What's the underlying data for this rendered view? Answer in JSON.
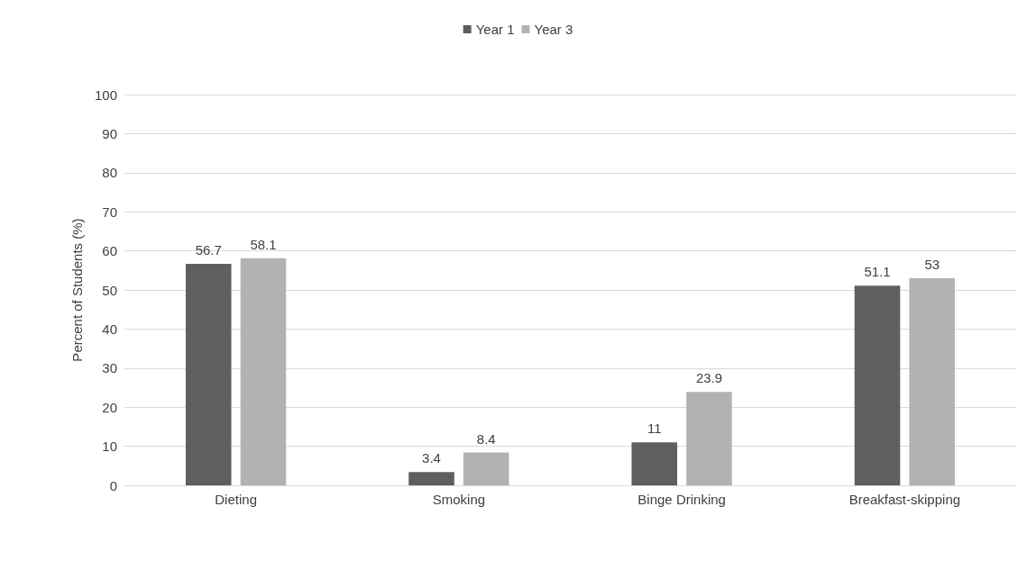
{
  "chart_data": {
    "type": "bar",
    "ylabel": "Percent of Students (%)",
    "categories": [
      "Dieting",
      "Smoking",
      "Binge Drinking",
      "Breakfast-skipping"
    ],
    "series": [
      {
        "name": "Year 1",
        "color": "#5f5f5f",
        "values": [
          56.7,
          3.4,
          11,
          51.1
        ]
      },
      {
        "name": "Year 3",
        "color": "#b2b2b2",
        "values": [
          58.1,
          8.4,
          23.9,
          53
        ]
      }
    ],
    "ylim": [
      0,
      100
    ],
    "yticks": [
      0,
      10,
      20,
      30,
      40,
      50,
      60,
      70,
      80,
      90,
      100
    ],
    "grid": "y",
    "legend": "top",
    "data_labels": true
  }
}
